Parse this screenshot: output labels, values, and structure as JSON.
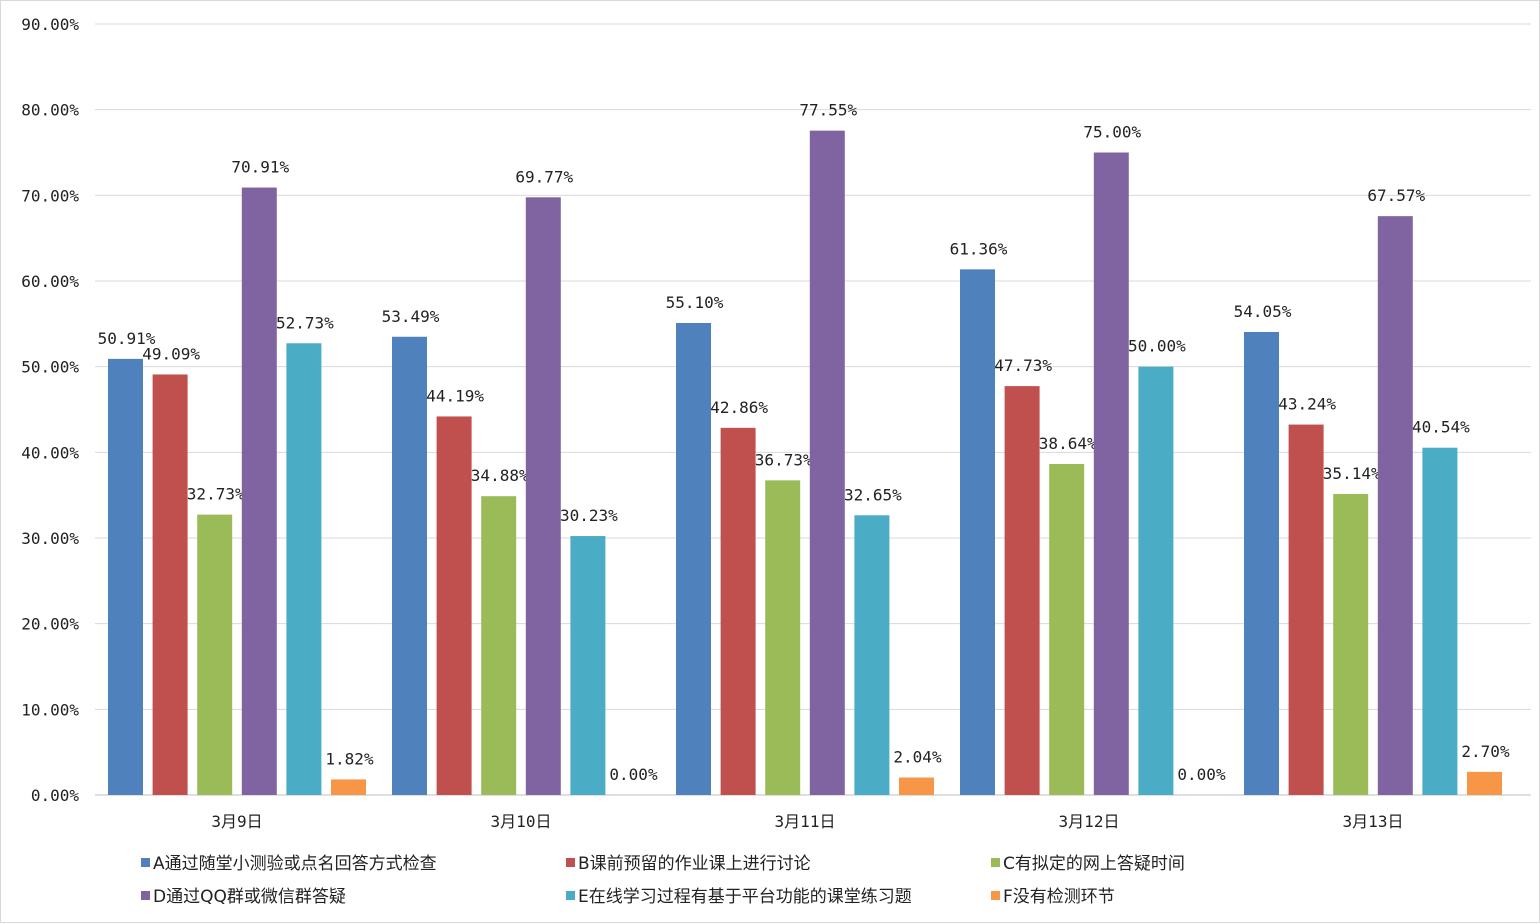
{
  "chart_data": {
    "type": "bar",
    "title": "",
    "xlabel": "",
    "ylabel": "",
    "ylim": [
      0,
      90
    ],
    "ytick_step": 10,
    "ytick_format": "percent-2dp",
    "grid": true,
    "legend_position": "bottom",
    "categories": [
      "3月9日",
      "3月10日",
      "3月11日",
      "3月12日",
      "3月13日"
    ],
    "series": [
      {
        "name": "A通过随堂小测验或点名回答方式检查",
        "color": "#4f81bd",
        "values": [
          50.91,
          53.49,
          55.1,
          61.36,
          54.05
        ]
      },
      {
        "name": "B课前预留的作业课上进行讨论",
        "color": "#c0504d",
        "values": [
          49.09,
          44.19,
          42.86,
          47.73,
          43.24
        ]
      },
      {
        "name": "C有拟定的网上答疑时间",
        "color": "#9bbb59",
        "values": [
          32.73,
          34.88,
          36.73,
          38.64,
          35.14
        ]
      },
      {
        "name": "D通过QQ群或微信群答疑",
        "color": "#8064a2",
        "values": [
          70.91,
          69.77,
          77.55,
          75.0,
          67.57
        ]
      },
      {
        "name": "E在线学习过程有基于平台功能的课堂练习题",
        "color": "#4bacc6",
        "values": [
          52.73,
          30.23,
          32.65,
          50.0,
          40.54
        ]
      },
      {
        "name": "F没有检测环节",
        "color": "#f79646",
        "values": [
          1.82,
          0.0,
          2.04,
          0.0,
          2.7
        ]
      }
    ]
  }
}
